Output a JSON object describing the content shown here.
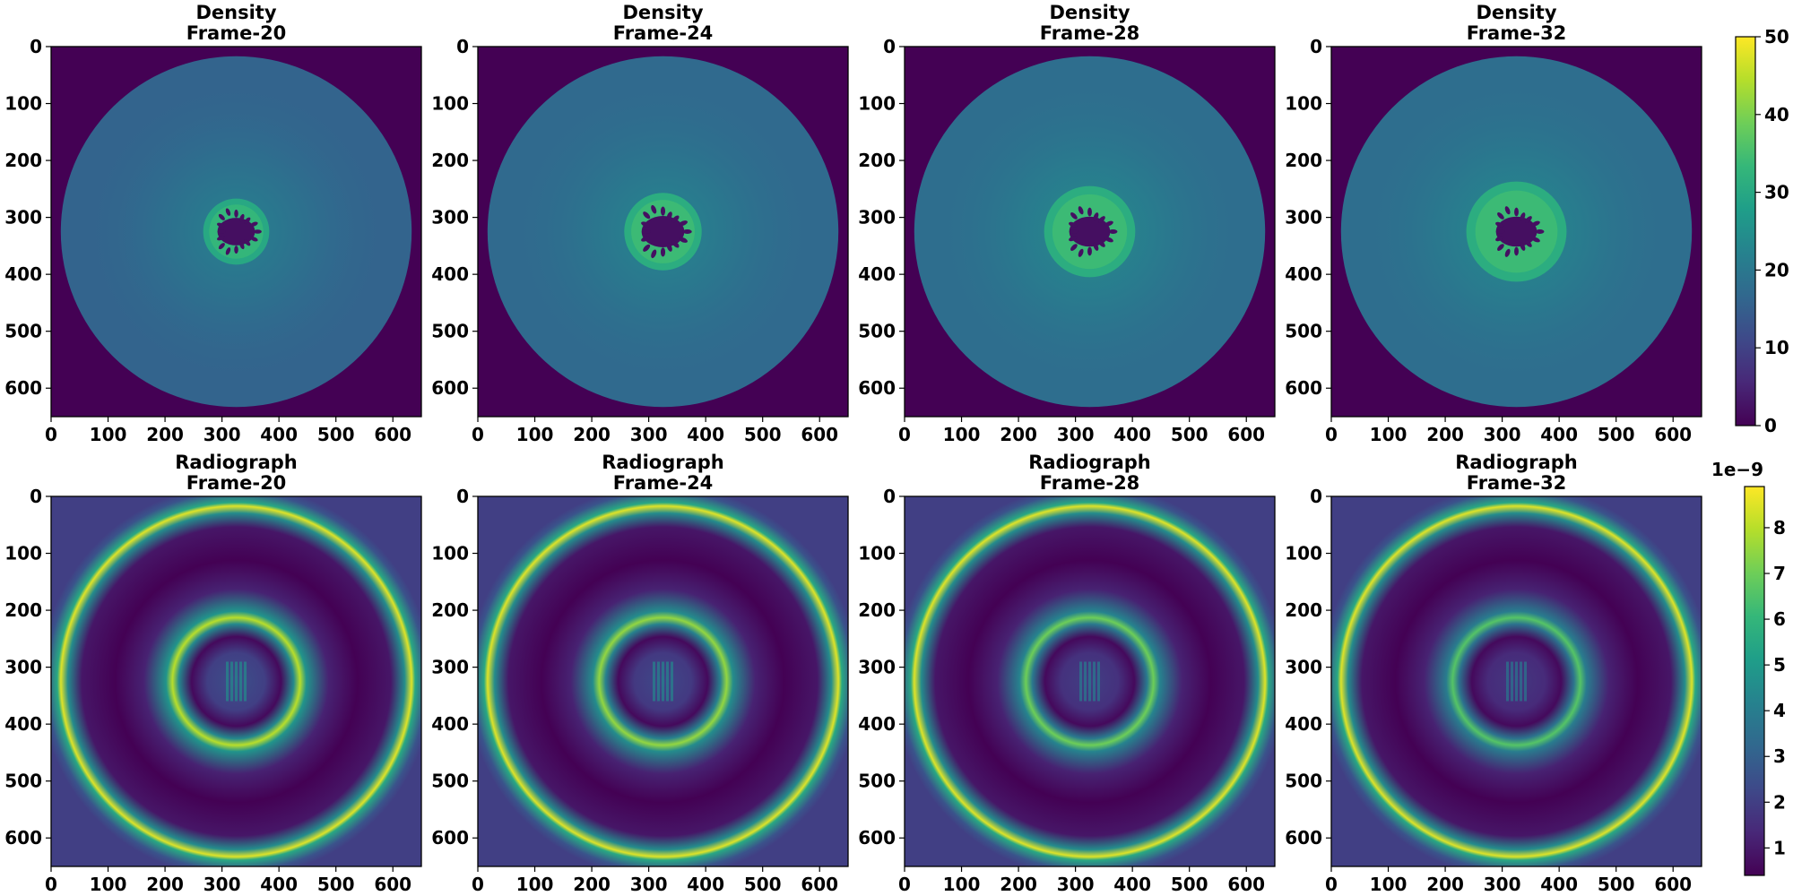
{
  "figure": {
    "rows": [
      {
        "name": "Density",
        "colorbar": {
          "min": 0,
          "max": 50,
          "ticks": [
            0,
            10,
            20,
            30,
            40,
            50
          ],
          "offset_label": ""
        }
      },
      {
        "name": "Radiograph",
        "colorbar": {
          "min": 0.4,
          "max": 8.9,
          "ticks": [
            1,
            2,
            3,
            4,
            5,
            6,
            7,
            8
          ],
          "offset_label": "1e−9"
        }
      }
    ],
    "frames": [
      "Frame-20",
      "Frame-24",
      "Frame-28",
      "Frame-32"
    ],
    "axis_ticks": [
      0,
      100,
      200,
      300,
      400,
      500,
      600
    ],
    "axis_range": [
      0,
      650
    ],
    "colormap": "viridis"
  },
  "chart_data": [
    {
      "type": "heatmap",
      "title": "Density\nFrame-20",
      "xlabel": "",
      "ylabel": "",
      "xlim": [
        0,
        650
      ],
      "ylim": [
        650,
        0
      ],
      "values": {
        "background": 0,
        "disk_radius": 308,
        "disk_level": 16,
        "core_radius": 58,
        "core_level": 30,
        "inner_radius": 44,
        "inner_level": 2
      }
    },
    {
      "type": "heatmap",
      "title": "Density\nFrame-24",
      "xlabel": "",
      "ylabel": "",
      "xlim": [
        0,
        650
      ],
      "ylim": [
        650,
        0
      ],
      "values": {
        "background": 0,
        "disk_radius": 308,
        "disk_level": 17,
        "core_radius": 68,
        "core_level": 31,
        "inner_radius": 50,
        "inner_level": 2
      }
    },
    {
      "type": "heatmap",
      "title": "Density\nFrame-28",
      "xlabel": "",
      "ylabel": "",
      "xlim": [
        0,
        650
      ],
      "ylim": [
        650,
        0
      ],
      "values": {
        "background": 0,
        "disk_radius": 308,
        "disk_level": 18,
        "core_radius": 80,
        "core_level": 31,
        "inner_radius": 48,
        "inner_level": 2
      }
    },
    {
      "type": "heatmap",
      "title": "Density\nFrame-32",
      "xlabel": "",
      "ylabel": "",
      "xlim": [
        0,
        650
      ],
      "ylim": [
        650,
        0
      ],
      "values": {
        "background": 0,
        "disk_radius": 308,
        "disk_level": 18,
        "core_radius": 88,
        "core_level": 31,
        "inner_radius": 48,
        "inner_level": 2
      }
    },
    {
      "type": "heatmap",
      "title": "Radiograph\nFrame-20",
      "xlabel": "",
      "ylabel": "",
      "xlim": [
        0,
        650
      ],
      "ylim": [
        650,
        0
      ],
      "values": {
        "background": 2.0,
        "outer_ring_radius": 308,
        "outer_ring_peak": 8.5,
        "inner_ring_radius": 112,
        "inner_ring_peak": 8.0,
        "center_level": 2.5,
        "minimum": 0.4
      }
    },
    {
      "type": "heatmap",
      "title": "Radiograph\nFrame-24",
      "xlabel": "",
      "ylabel": "",
      "xlim": [
        0,
        650
      ],
      "ylim": [
        650,
        0
      ],
      "values": {
        "background": 2.0,
        "outer_ring_radius": 308,
        "outer_ring_peak": 8.5,
        "inner_ring_radius": 112,
        "inner_ring_peak": 7.5,
        "center_level": 2.3,
        "minimum": 0.4
      }
    },
    {
      "type": "heatmap",
      "title": "Radiograph\nFrame-28",
      "xlabel": "",
      "ylabel": "",
      "xlim": [
        0,
        650
      ],
      "ylim": [
        650,
        0
      ],
      "values": {
        "background": 2.0,
        "outer_ring_radius": 308,
        "outer_ring_peak": 8.5,
        "inner_ring_radius": 112,
        "inner_ring_peak": 7.0,
        "center_level": 2.0,
        "minimum": 0.4
      }
    },
    {
      "type": "heatmap",
      "title": "Radiograph\nFrame-32",
      "xlabel": "",
      "ylabel": "",
      "xlim": [
        0,
        650
      ],
      "ylim": [
        650,
        0
      ],
      "values": {
        "background": 2.0,
        "outer_ring_radius": 308,
        "outer_ring_peak": 8.5,
        "inner_ring_radius": 112,
        "inner_ring_peak": 6.6,
        "center_level": 1.8,
        "minimum": 0.4
      }
    }
  ]
}
